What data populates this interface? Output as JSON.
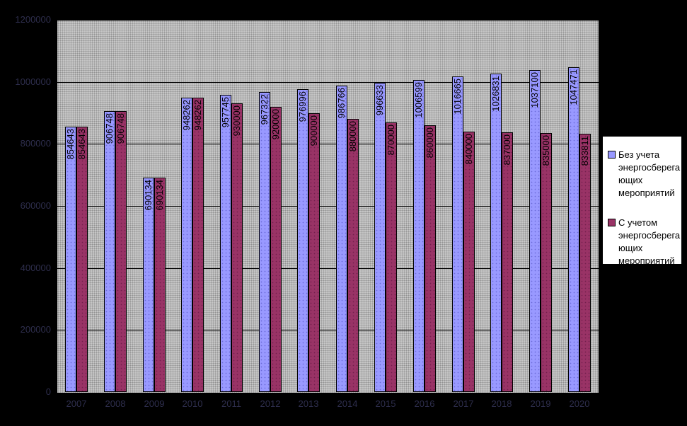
{
  "chart_data": {
    "type": "bar",
    "title": "",
    "xlabel": "",
    "ylabel": "",
    "categories": [
      "2007",
      "2008",
      "2009",
      "2010",
      "2011",
      "2012",
      "2013",
      "2014",
      "2015",
      "2016",
      "2017",
      "2018",
      "2019",
      "2020"
    ],
    "series": [
      {
        "name": "Без учета энергосберегающих мероприятий",
        "color": "#9999ff",
        "dot_color": "#6b6bd9",
        "values": [
          854643,
          906748,
          690134,
          948262,
          957745,
          967322,
          976996,
          986766,
          996633,
          1006599,
          1016665,
          1026831,
          1037100,
          1047471
        ]
      },
      {
        "name": "С учетом энергосберегающих мероприятий",
        "color": "#993366",
        "dot_color": "#731f4d",
        "values": [
          854643,
          906748,
          690134,
          948262,
          930000,
          920000,
          900000,
          880000,
          870000,
          860000,
          840000,
          837000,
          835000,
          833811
        ]
      }
    ],
    "ylim": [
      0,
      1200000
    ],
    "ytick_step": 200000,
    "ytick_labels": [
      "0",
      "200000",
      "400000",
      "600000",
      "800000",
      "1000000",
      "1200000"
    ],
    "grid": true,
    "data_labels": "inside-end-rotated-90",
    "legend_position": "right",
    "plot_bg": "#c6c6c6",
    "chart_bg": "#000000",
    "axis_text_color": "#2e2e4d"
  },
  "legend": {
    "items": [
      {
        "label": "Без учета\nэнергосберега\nющих\nмероприятий"
      },
      {
        "label": "С учетом\nэнергосберега\nющих\nмероприятий"
      }
    ]
  }
}
